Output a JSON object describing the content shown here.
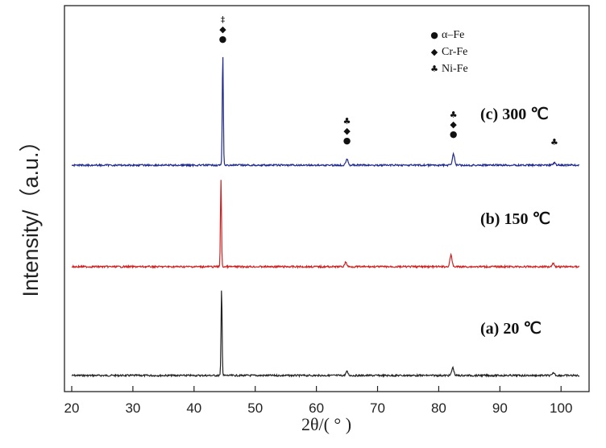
{
  "chart_data": {
    "type": "line",
    "title": "",
    "xlabel": "2θ/( ° )",
    "ylabel": "Intensity/（a.u.）",
    "xlim": [
      20,
      103
    ],
    "xticks": [
      20,
      30,
      40,
      50,
      60,
      70,
      80,
      90,
      100
    ],
    "grid": false,
    "legend": {
      "placement": "top-right",
      "entries": [
        {
          "symbol": "●",
          "label": "α–Fe"
        },
        {
          "symbol": "◆",
          "label": "Cr-Fe"
        },
        {
          "symbol": "♣",
          "label": "Ni-Fe"
        }
      ]
    },
    "series": [
      {
        "label": "(a) 20 ℃",
        "color": "#222222",
        "baseline": 0.0,
        "peaks": [
          {
            "x": 44.5,
            "h": 1.0
          },
          {
            "x": 65.0,
            "h": 0.045
          },
          {
            "x": 82.3,
            "h": 0.09
          },
          {
            "x": 98.8,
            "h": 0.03
          }
        ]
      },
      {
        "label": "(b) 150 ℃",
        "color": "#cc2222",
        "baseline": 1.0,
        "peaks": [
          {
            "x": 44.4,
            "h": 1.0
          },
          {
            "x": 64.8,
            "h": 0.05
          },
          {
            "x": 82.0,
            "h": 0.13
          },
          {
            "x": 98.7,
            "h": 0.04
          }
        ]
      },
      {
        "label": "(c) 300 ℃",
        "color": "#1f2a8c",
        "baseline": 2.0,
        "peaks": [
          {
            "x": 44.7,
            "h": 1.28
          },
          {
            "x": 65.0,
            "h": 0.08
          },
          {
            "x": 82.4,
            "h": 0.13
          },
          {
            "x": 98.9,
            "h": 0.03
          }
        ]
      }
    ],
    "peak_markers": [
      {
        "x": 44.7,
        "symbols": [
          "‡",
          "◆",
          "●"
        ]
      },
      {
        "x": 65.0,
        "symbols": [
          "♣",
          "◆",
          "●"
        ]
      },
      {
        "x": 82.4,
        "symbols": [
          "♣",
          "◆",
          "●"
        ]
      },
      {
        "x": 98.9,
        "symbols": [
          "♣"
        ]
      }
    ]
  }
}
